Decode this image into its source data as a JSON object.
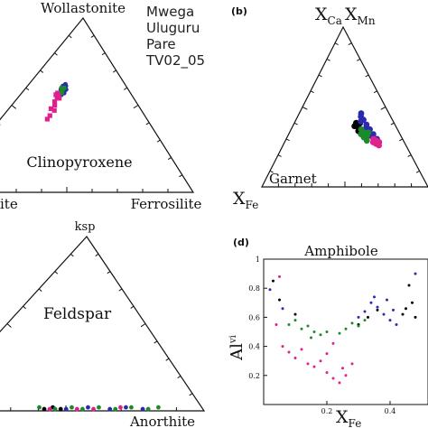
{
  "legend": {
    "entries": [
      "Mwega",
      "Uluguru",
      "Pare",
      "TV02_05"
    ],
    "colors": [
      "#000000",
      "#2a2ab0",
      "#1a8a2a",
      "#e0208c"
    ]
  },
  "chart_data": [
    {
      "id": "a",
      "type": "scatter",
      "subtype": "ternary",
      "title": "Clinopyroxene",
      "corners": {
        "top": "Wollastonite",
        "left": "",
        "right": "Ferrosilite"
      },
      "left_fragment": "ite",
      "series": [
        {
          "name": "Mwega",
          "points": []
        },
        {
          "name": "Uluguru",
          "points": [
            [
              0.38,
              0.58
            ],
            [
              0.37,
              0.6
            ],
            [
              0.39,
              0.57
            ],
            [
              0.36,
              0.61
            ],
            [
              0.38,
              0.62
            ],
            [
              0.4,
              0.59
            ],
            [
              0.35,
              0.59
            ],
            [
              0.37,
              0.56
            ],
            [
              0.39,
              0.61
            ],
            [
              0.36,
              0.57
            ]
          ]
        },
        {
          "name": "Pare",
          "points": [
            [
              0.37,
              0.59
            ],
            [
              0.36,
              0.58
            ],
            [
              0.38,
              0.6
            ],
            [
              0.35,
              0.6
            ],
            [
              0.37,
              0.57
            ]
          ]
        },
        {
          "name": "TV02_05",
          "points": [
            [
              0.33,
              0.57
            ],
            [
              0.32,
              0.56
            ],
            [
              0.35,
              0.55
            ],
            [
              0.34,
              0.54
            ],
            [
              0.36,
              0.54
            ],
            [
              0.33,
              0.52
            ],
            [
              0.34,
              0.5
            ],
            [
              0.32,
              0.48
            ],
            [
              0.35,
              0.47
            ],
            [
              0.33,
              0.44
            ],
            [
              0.32,
              0.42
            ]
          ]
        }
      ]
    },
    {
      "id": "b",
      "type": "scatter",
      "subtype": "ternary",
      "panel_label": "(b)",
      "title": "Garnet",
      "corners": {
        "top_left": "X",
        "top_left_sub": "Ca",
        "top_right": "X",
        "top_right_sub": "Mn",
        "bottom_left": "X",
        "bottom_left_sub": "Fe"
      },
      "series": [
        {
          "name": "Mwega",
          "points": [
            [
              0.62,
              0.4
            ],
            [
              0.6,
              0.38
            ],
            [
              0.64,
              0.37
            ],
            [
              0.66,
              0.4
            ],
            [
              0.63,
              0.35
            ]
          ]
        },
        {
          "name": "Uluguru",
          "points": [
            [
              0.68,
              0.44
            ],
            [
              0.7,
              0.42
            ],
            [
              0.67,
              0.41
            ],
            [
              0.72,
              0.39
            ],
            [
              0.74,
              0.36
            ],
            [
              0.76,
              0.33
            ],
            [
              0.73,
              0.32
            ],
            [
              0.78,
              0.3
            ],
            [
              0.71,
              0.37
            ],
            [
              0.69,
              0.46
            ]
          ]
        },
        {
          "name": "Pare",
          "points": [
            [
              0.66,
              0.36
            ],
            [
              0.68,
              0.34
            ],
            [
              0.7,
              0.32
            ],
            [
              0.67,
              0.31
            ],
            [
              0.65,
              0.33
            ],
            [
              0.72,
              0.34
            ],
            [
              0.69,
              0.29
            ]
          ]
        },
        {
          "name": "TV02_05",
          "points": [
            [
              0.74,
              0.28
            ],
            [
              0.76,
              0.27
            ],
            [
              0.78,
              0.26
            ],
            [
              0.77,
              0.29
            ],
            [
              0.75,
              0.3
            ],
            [
              0.79,
              0.28
            ]
          ]
        }
      ]
    },
    {
      "id": "c",
      "type": "scatter",
      "subtype": "ternary",
      "title": "Feldspar",
      "corners": {
        "top": "ksp",
        "left": "",
        "right": "Anorthite"
      },
      "series": [
        {
          "name": "Mwega",
          "points": [
            [
              0.42,
              0.01
            ],
            [
              0.45,
              0.02
            ],
            [
              0.48,
              0.01
            ]
          ]
        },
        {
          "name": "Uluguru",
          "points": [
            [
              0.5,
              0.01
            ],
            [
              0.58,
              0.02
            ],
            [
              0.66,
              0.01
            ],
            [
              0.72,
              0.02
            ],
            [
              0.78,
              0.01
            ]
          ]
        },
        {
          "name": "Pare",
          "points": [
            [
              0.4,
              0.02
            ],
            [
              0.46,
              0.01
            ],
            [
              0.52,
              0.02
            ],
            [
              0.56,
              0.01
            ],
            [
              0.62,
              0.02
            ],
            [
              0.68,
              0.01
            ],
            [
              0.74,
              0.02
            ],
            [
              0.8,
              0.01
            ],
            [
              0.84,
              0.02
            ]
          ]
        },
        {
          "name": "TV02_05",
          "points": [
            [
              0.44,
              0.01
            ],
            [
              0.54,
              0.01
            ],
            [
              0.6,
              0.01
            ],
            [
              0.7,
              0.02
            ]
          ]
        }
      ]
    },
    {
      "id": "d",
      "type": "scatter",
      "panel_label": "(d)",
      "title": "Amphibole",
      "xlabel": "X",
      "xlabel_sub": "Fe",
      "ylabel": "Al",
      "ylabel_sup": "vi",
      "xlim": [
        0.0,
        0.52
      ],
      "ylim": [
        0.0,
        1.0
      ],
      "xticks": [
        "0.2",
        "0.4"
      ],
      "yticks": [
        "1",
        "0.8",
        "0.6",
        "0.4",
        "0.2"
      ],
      "xtick_values": [
        0.2,
        0.4
      ],
      "ytick_values": [
        1.0,
        0.8,
        0.6,
        0.4,
        0.2
      ],
      "series": [
        {
          "name": "Mwega",
          "points": [
            [
              0.05,
              0.72
            ],
            [
              0.1,
              0.62
            ],
            [
              0.3,
              0.55
            ],
            [
              0.33,
              0.6
            ],
            [
              0.36,
              0.65
            ],
            [
              0.44,
              0.62
            ],
            [
              0.45,
              0.66
            ],
            [
              0.47,
              0.7
            ],
            [
              0.48,
              0.6
            ],
            [
              0.46,
              0.82
            ],
            [
              0.03,
              0.85
            ]
          ]
        },
        {
          "name": "Uluguru",
          "points": [
            [
              0.02,
              0.79
            ],
            [
              0.06,
              0.66
            ],
            [
              0.3,
              0.6
            ],
            [
              0.32,
              0.64
            ],
            [
              0.34,
              0.7
            ],
            [
              0.36,
              0.67
            ],
            [
              0.38,
              0.62
            ],
            [
              0.39,
              0.72
            ],
            [
              0.4,
              0.58
            ],
            [
              0.42,
              0.55
            ],
            [
              0.41,
              0.65
            ],
            [
              0.35,
              0.74
            ],
            [
              0.48,
              0.9
            ]
          ]
        },
        {
          "name": "Pare",
          "points": [
            [
              0.08,
              0.55
            ],
            [
              0.1,
              0.58
            ],
            [
              0.12,
              0.52
            ],
            [
              0.14,
              0.54
            ],
            [
              0.15,
              0.46
            ],
            [
              0.16,
              0.5
            ],
            [
              0.18,
              0.48
            ],
            [
              0.2,
              0.5
            ],
            [
              0.24,
              0.49
            ],
            [
              0.26,
              0.52
            ],
            [
              0.28,
              0.56
            ],
            [
              0.3,
              0.54
            ],
            [
              0.32,
              0.58
            ]
          ]
        },
        {
          "name": "TV02_05",
          "points": [
            [
              0.04,
              0.55
            ],
            [
              0.06,
              0.4
            ],
            [
              0.08,
              0.36
            ],
            [
              0.1,
              0.32
            ],
            [
              0.12,
              0.38
            ],
            [
              0.14,
              0.28
            ],
            [
              0.16,
              0.26
            ],
            [
              0.18,
              0.3
            ],
            [
              0.2,
              0.22
            ],
            [
              0.22,
              0.18
            ],
            [
              0.24,
              0.15
            ],
            [
              0.26,
              0.2
            ],
            [
              0.25,
              0.25
            ],
            [
              0.28,
              0.28
            ],
            [
              0.2,
              0.35
            ],
            [
              0.22,
              0.42
            ],
            [
              0.05,
              0.88
            ]
          ]
        }
      ]
    }
  ]
}
